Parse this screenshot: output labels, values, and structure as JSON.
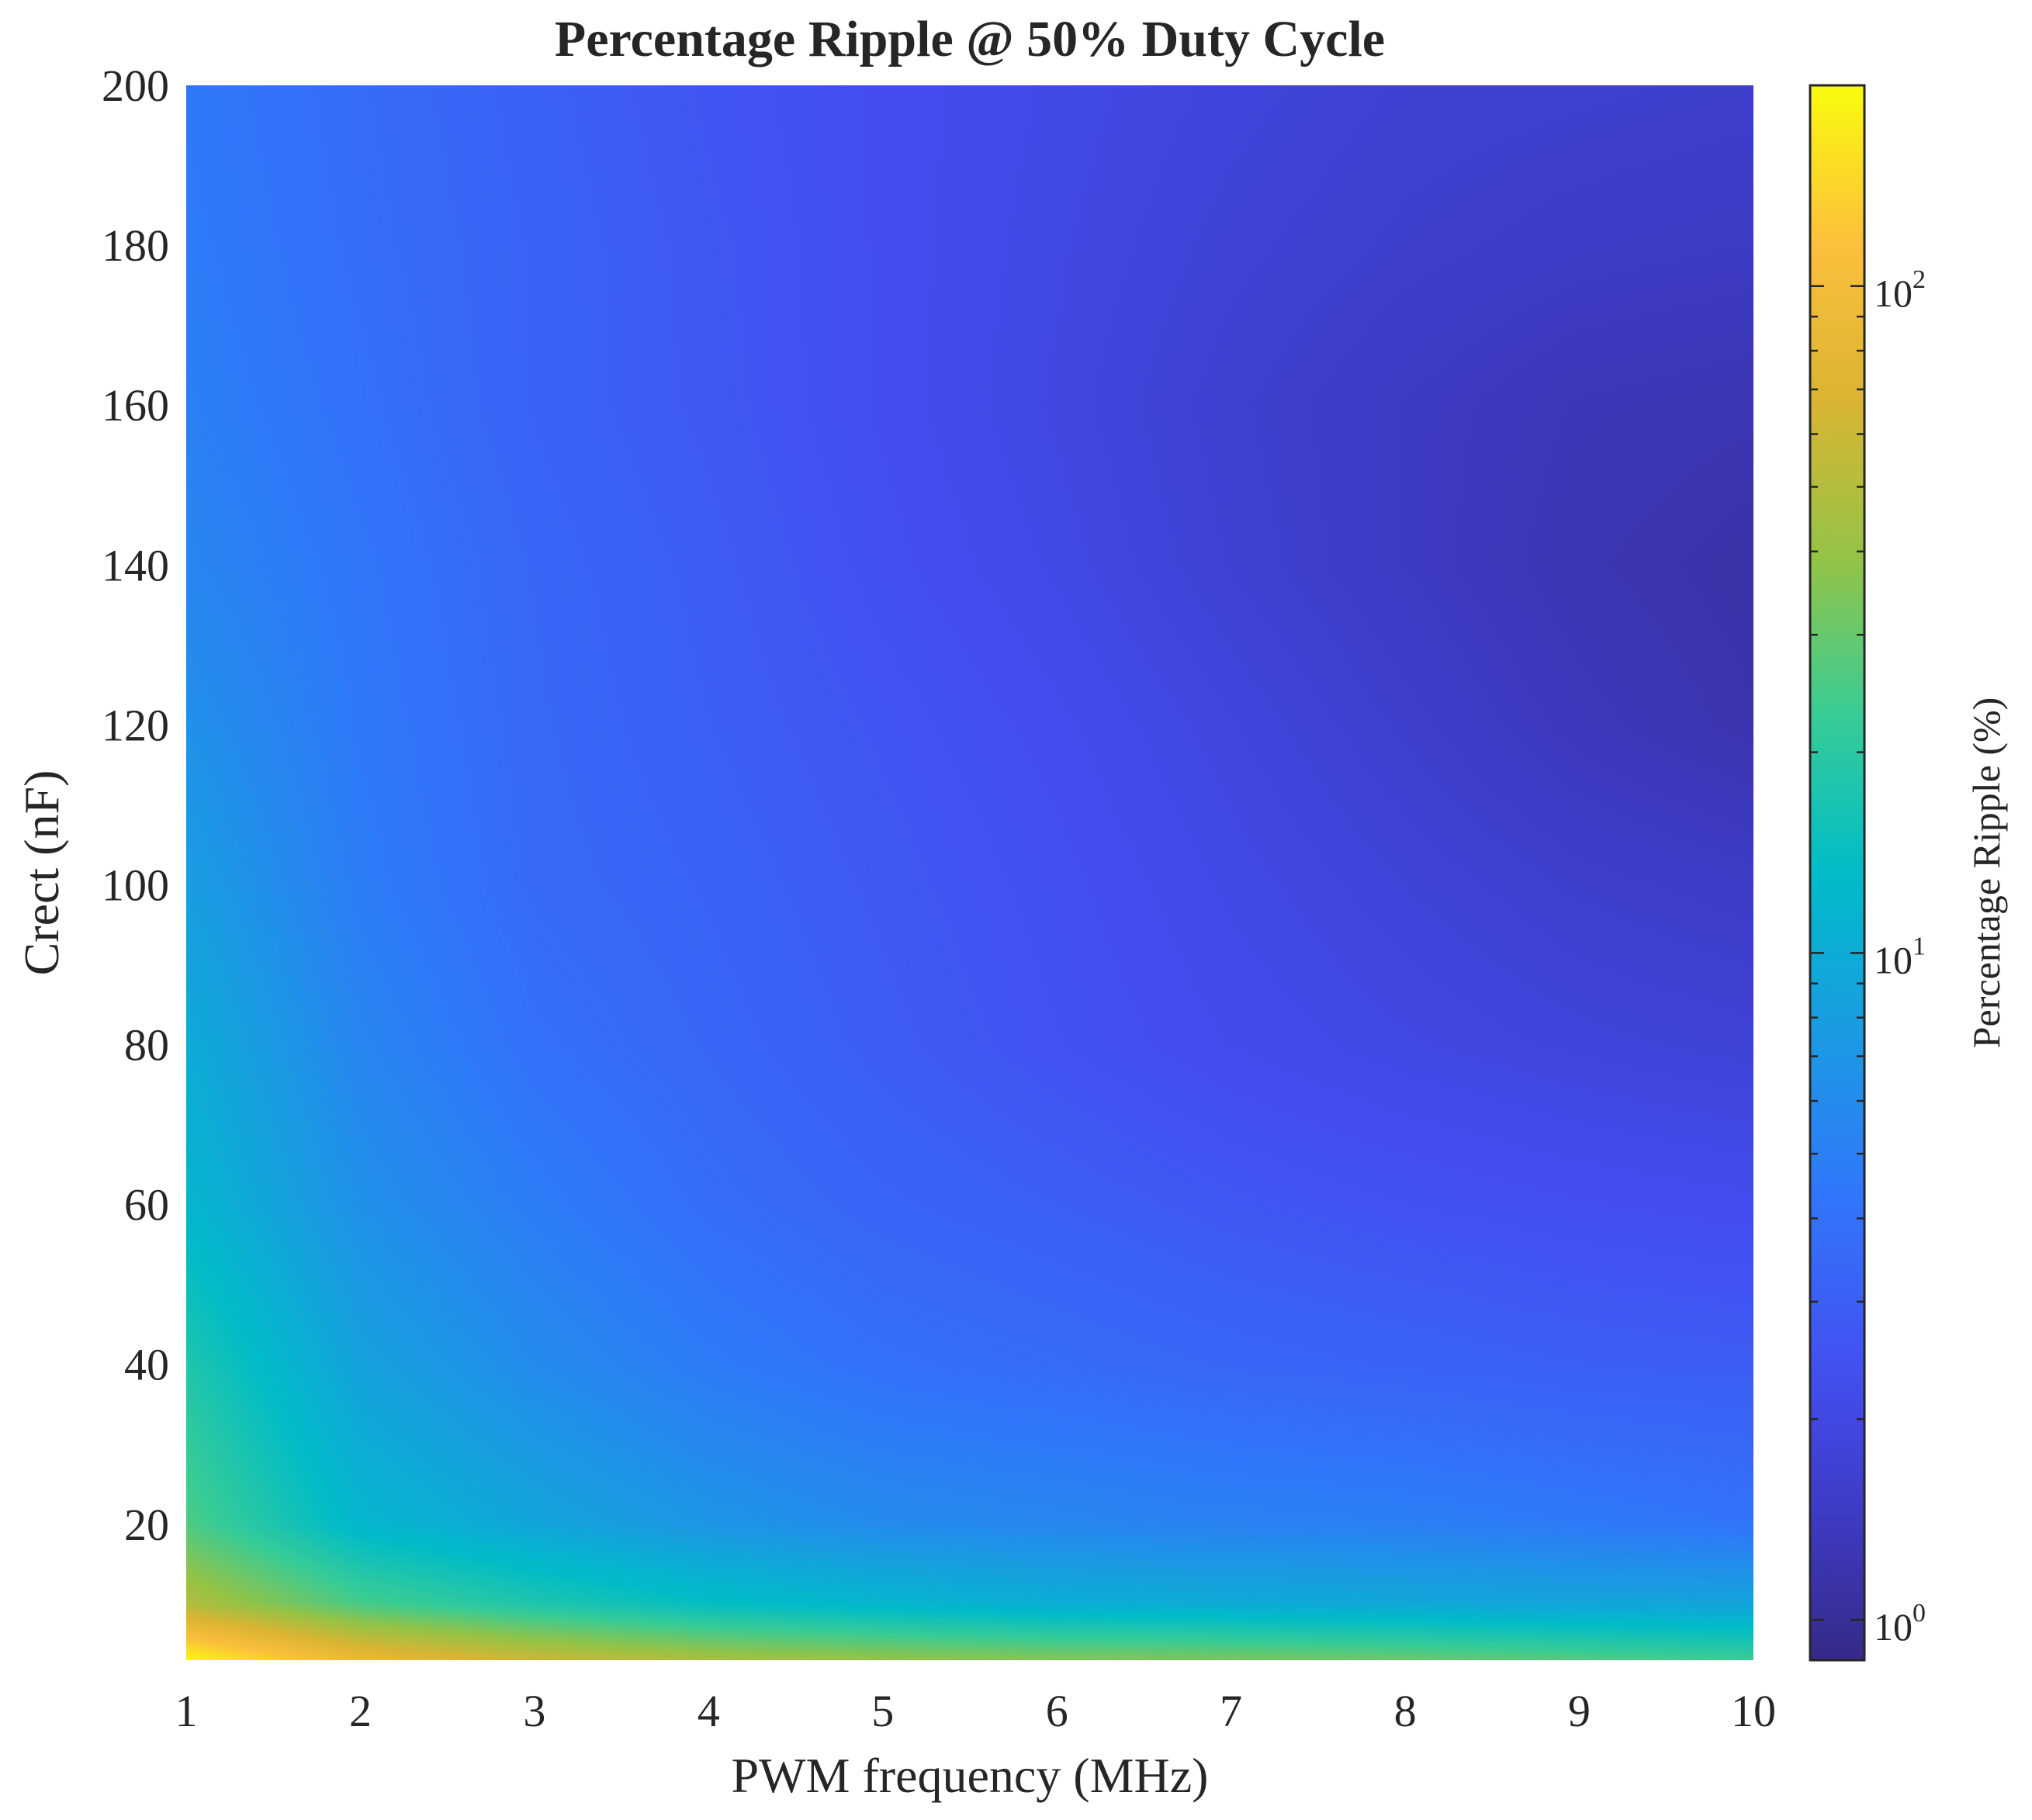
{
  "chart_data": {
    "type": "heatmap",
    "title": "Percentage Ripple @ 50% Duty Cycle",
    "xlabel": "PWM frequency (MHz)",
    "ylabel": "Crect (nF)",
    "xlim": [
      1,
      10
    ],
    "ylim": [
      3,
      200
    ],
    "xticks": [
      1,
      2,
      3,
      4,
      5,
      6,
      7,
      8,
      9,
      10
    ],
    "yticks": [
      20,
      40,
      60,
      80,
      100,
      120,
      140,
      160,
      180,
      200
    ],
    "colormap": "parula",
    "colorbar": {
      "label": "Percentage Ripple (%)",
      "scale": "log",
      "clim": [
        0.87,
        200
      ],
      "ticks": [
        {
          "value": 1,
          "base": "10",
          "exp": "0"
        },
        {
          "value": 10,
          "base": "10",
          "exp": "1"
        },
        {
          "value": 100,
          "base": "10",
          "exp": "2"
        }
      ]
    },
    "x": [
      1,
      2,
      3,
      4,
      5,
      6,
      7,
      8,
      9,
      10
    ],
    "y": [
      3,
      10,
      20,
      40,
      60,
      80,
      100,
      120,
      140,
      160,
      180,
      200
    ],
    "z": [
      [
        200,
        90,
        60,
        46,
        40,
        36,
        34,
        31,
        27,
        23
      ],
      [
        50,
        25,
        18,
        14,
        12,
        10.5,
        10,
        9.5,
        9,
        8.8
      ],
      [
        26,
        12,
        9,
        7,
        6,
        5.6,
        5.2,
        5,
        4.6,
        4.2
      ],
      [
        18,
        8.5,
        6,
        4.7,
        4,
        3.7,
        3.4,
        3.2,
        3.0,
        2.9
      ],
      [
        12,
        6.5,
        4.8,
        3.8,
        3.3,
        3.0,
        2.7,
        2.5,
        2.35,
        2.25
      ],
      [
        10,
        5.5,
        4.0,
        3.4,
        2.9,
        2.5,
        2.2,
        2.0,
        1.85,
        1.75
      ],
      [
        8,
        4.8,
        3.6,
        3.2,
        2.75,
        2.4,
        2.05,
        1.8,
        1.6,
        1.5
      ],
      [
        6.5,
        4.5,
        3.5,
        3.0,
        2.6,
        2.25,
        1.9,
        1.6,
        1.35,
        1.2
      ],
      [
        5.5,
        4.3,
        3.4,
        2.9,
        2.4,
        2.05,
        1.7,
        1.45,
        1.25,
        1.15
      ],
      [
        5,
        4.0,
        3.2,
        2.75,
        2.3,
        1.95,
        1.65,
        1.45,
        1.3,
        1.25
      ],
      [
        4.7,
        3.8,
        3.2,
        2.7,
        2.3,
        2.0,
        1.75,
        1.6,
        1.5,
        1.45
      ],
      [
        4.5,
        3.7,
        3.1,
        2.6,
        2.3,
        2.05,
        1.85,
        1.7,
        1.65,
        1.6
      ]
    ]
  }
}
